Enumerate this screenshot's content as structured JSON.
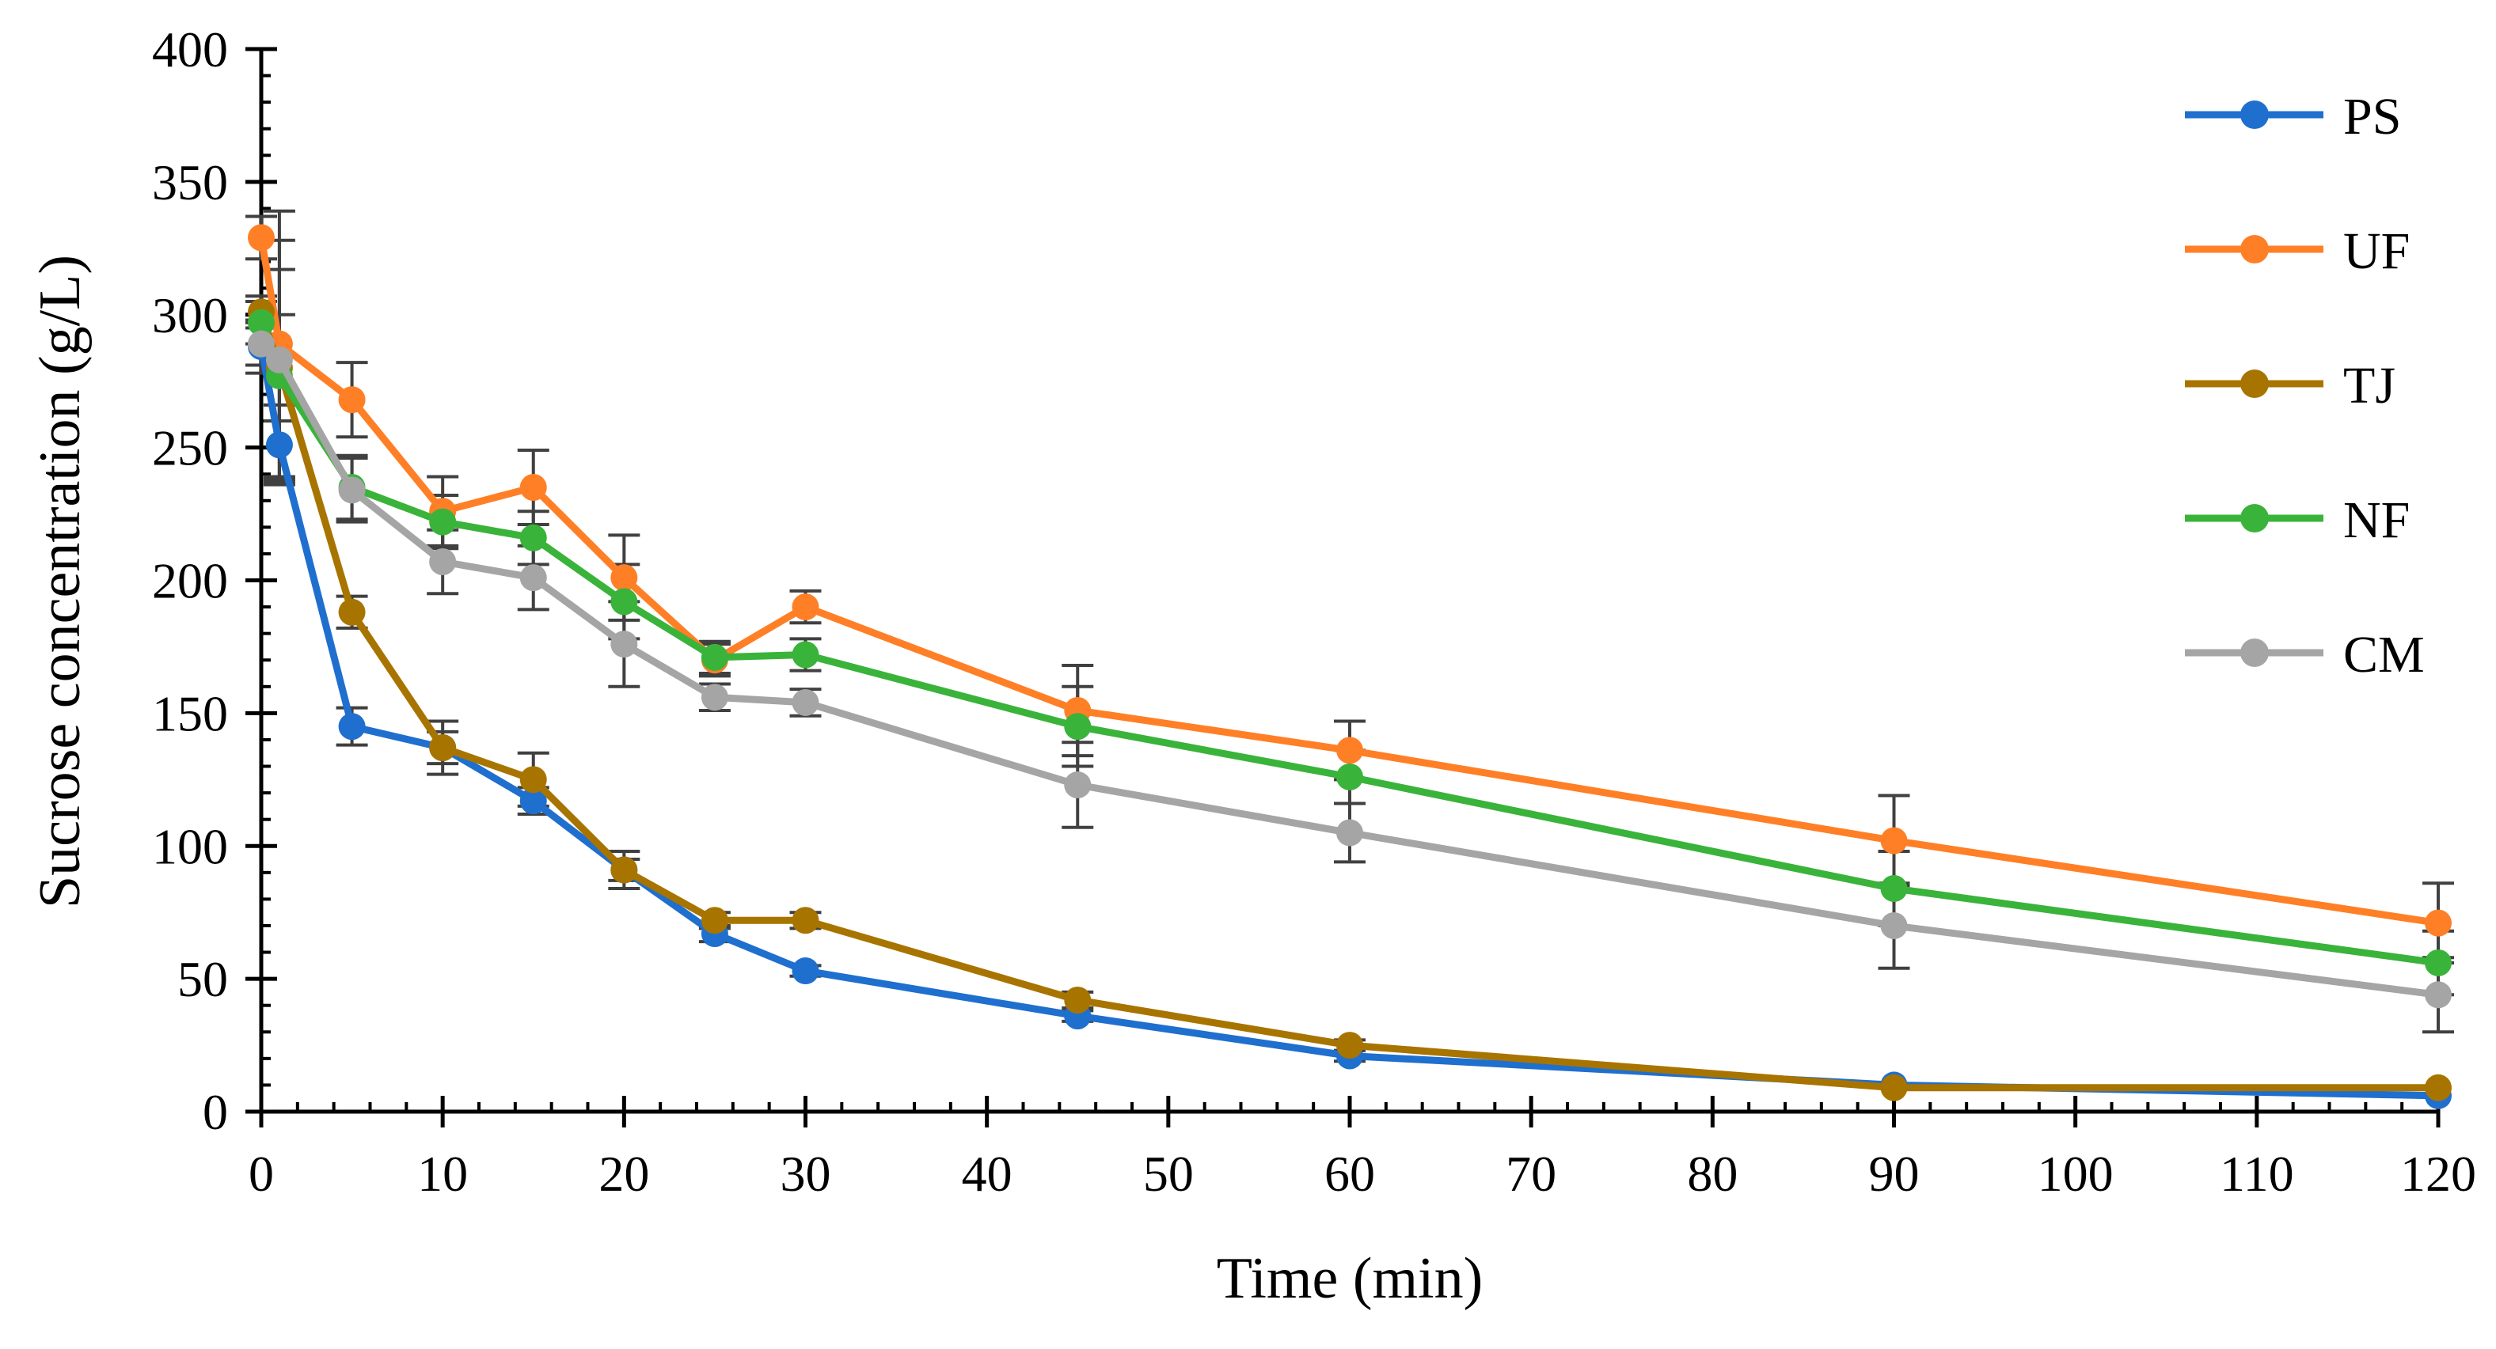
{
  "chart_data": {
    "type": "line",
    "title": "",
    "xlabel": "Time (min)",
    "ylabel": "Sucrose concentration (g/L)",
    "xlim": [
      0,
      120
    ],
    "ylim": [
      0,
      400
    ],
    "x_ticks": [
      0,
      10,
      20,
      30,
      40,
      50,
      60,
      70,
      80,
      90,
      100,
      110,
      120
    ],
    "y_ticks": [
      0,
      50,
      100,
      150,
      200,
      250,
      300,
      350,
      400
    ],
    "grid": false,
    "legend_position": "right",
    "x": [
      0,
      1,
      5,
      10,
      15,
      20,
      25,
      30,
      45,
      60,
      90,
      120
    ],
    "series": [
      {
        "name": "PS",
        "color": "#1f6fce",
        "values": [
          288,
          251,
          145,
          137,
          117,
          91,
          67,
          53,
          36,
          21,
          10,
          6
        ],
        "errors": [
          10,
          15,
          7,
          6,
          5,
          4,
          3,
          2,
          2,
          2,
          1,
          1
        ]
      },
      {
        "name": "UF",
        "color": "#ff7f27",
        "values": [
          329,
          289,
          268,
          226,
          235,
          201,
          170,
          190,
          151,
          136,
          102,
          71
        ],
        "errors": [
          8,
          50,
          14,
          13,
          14,
          16,
          6,
          6,
          17,
          11,
          17,
          15
        ]
      },
      {
        "name": "TJ",
        "color": "#a87400",
        "values": [
          301,
          280,
          188,
          137,
          125,
          91,
          72,
          72,
          42,
          25,
          9,
          9
        ],
        "errors": [
          6,
          20,
          6,
          10,
          10,
          7,
          3,
          3,
          3,
          2,
          1,
          1
        ]
      },
      {
        "name": "NF",
        "color": "#3ab33a",
        "values": [
          297,
          277,
          235,
          222,
          216,
          192,
          171,
          172,
          145,
          126,
          84,
          56
        ],
        "errors": [
          8,
          40,
          12,
          10,
          10,
          14,
          6,
          6,
          15,
          10,
          14,
          12
        ]
      },
      {
        "name": "CM",
        "color": "#a5a5a5",
        "values": [
          289,
          283,
          234,
          207,
          201,
          176,
          156,
          154,
          123,
          105,
          70,
          44
        ],
        "errors": [
          8,
          45,
          12,
          12,
          12,
          16,
          5,
          5,
          16,
          11,
          16,
          14
        ]
      }
    ]
  }
}
